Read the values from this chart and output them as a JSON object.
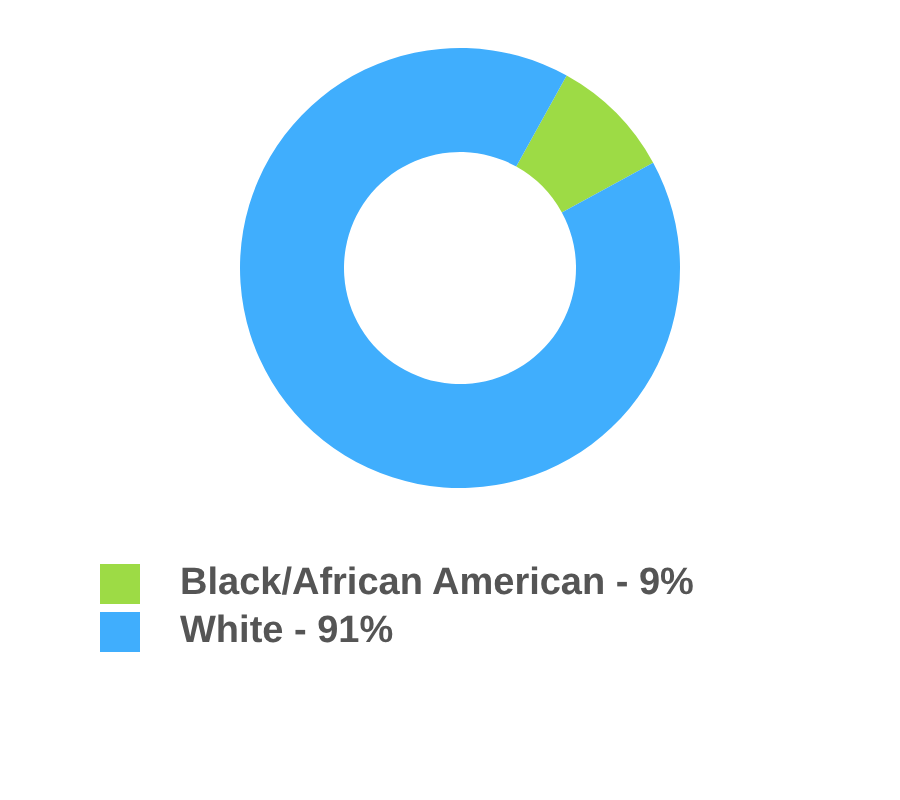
{
  "chart_data": {
    "type": "donut",
    "categories": [
      "Black/African American - 9%",
      "White - 91%"
    ],
    "values": [
      9,
      91
    ],
    "colors": [
      "#9ddb45",
      "#40aefd"
    ],
    "legend": "bottom"
  }
}
